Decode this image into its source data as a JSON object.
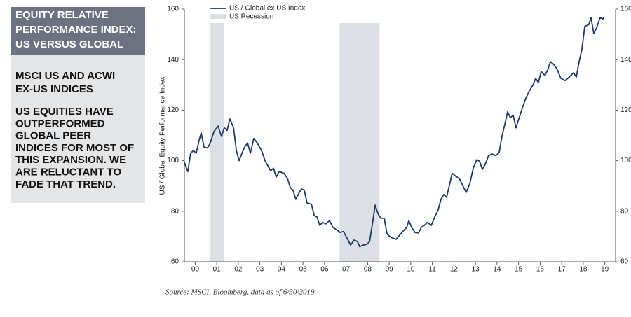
{
  "panel": {
    "heading": [
      "EQUITY RELATIVE",
      "PERFORMANCE INDEX:",
      "US VERSUS GLOBAL"
    ],
    "subheading": [
      "MSCI US AND ACWI",
      "EX-US INDICES"
    ],
    "body": [
      "US EQUITIES HAVE",
      "OUTPERFORMED",
      "GLOBAL PEER",
      "INDICES FOR MOST OF",
      "THIS EXPANSION. WE",
      "ARE RELUCTANT TO",
      "FADE THAT TREND."
    ]
  },
  "chart_data": {
    "type": "line",
    "ylabel": "US / Global Equity Performance Index",
    "source": "Source: MSCI, Bloomberg, data as of 6/30/2019.",
    "xlim": [
      2000,
      2020
    ],
    "xticks": [
      {
        "value": 2000.5,
        "label": "00"
      },
      {
        "value": 2001.5,
        "label": "01"
      },
      {
        "value": 2002.5,
        "label": "02"
      },
      {
        "value": 2003.5,
        "label": "03"
      },
      {
        "value": 2004.5,
        "label": "04"
      },
      {
        "value": 2005.5,
        "label": "05"
      },
      {
        "value": 2006.5,
        "label": "06"
      },
      {
        "value": 2007.5,
        "label": "07"
      },
      {
        "value": 2008.5,
        "label": "08"
      },
      {
        "value": 2009.5,
        "label": "09"
      },
      {
        "value": 2010.5,
        "label": "10"
      },
      {
        "value": 2011.5,
        "label": "11"
      },
      {
        "value": 2012.5,
        "label": "12"
      },
      {
        "value": 2013.5,
        "label": "13"
      },
      {
        "value": 2014.5,
        "label": "14"
      },
      {
        "value": 2015.5,
        "label": "15"
      },
      {
        "value": 2016.5,
        "label": "16"
      },
      {
        "value": 2017.5,
        "label": "17"
      },
      {
        "value": 2018.5,
        "label": "18"
      },
      {
        "value": 2019.5,
        "label": "19"
      }
    ],
    "ylim": [
      60,
      160
    ],
    "yticks": [
      60,
      80,
      100,
      120,
      140,
      160
    ],
    "y2lim": [
      60,
      160
    ],
    "y2ticks": [
      60,
      80,
      100,
      120,
      140,
      160
    ],
    "shading": {
      "name": "US Recession",
      "color": "#dcdfe3",
      "ranges": [
        [
          2001.17,
          2001.82
        ],
        [
          2007.2,
          2009.05
        ]
      ]
    },
    "x": [
      2000.0,
      2000.16,
      2000.29,
      2000.42,
      2000.55,
      2000.68,
      2000.78,
      2000.91,
      2001.07,
      2001.2,
      2001.37,
      2001.56,
      2001.72,
      2001.85,
      2001.98,
      2002.11,
      2002.28,
      2002.41,
      2002.54,
      2002.67,
      2002.8,
      2002.93,
      2003.06,
      2003.22,
      2003.38,
      2003.58,
      2003.74,
      2003.87,
      2004.0,
      2004.13,
      2004.26,
      2004.39,
      2004.62,
      2004.78,
      2004.91,
      2005.04,
      2005.17,
      2005.3,
      2005.43,
      2005.56,
      2005.69,
      2005.89,
      2006.02,
      2006.15,
      2006.28,
      2006.41,
      2006.57,
      2006.73,
      2006.89,
      2007.06,
      2007.22,
      2007.38,
      2007.54,
      2007.71,
      2007.87,
      2008.03,
      2008.13,
      2008.29,
      2008.46,
      2008.59,
      2008.72,
      2008.85,
      2008.98,
      2009.11,
      2009.27,
      2009.4,
      2009.53,
      2009.66,
      2009.82,
      2009.98,
      2010.15,
      2010.31,
      2010.41,
      2010.54,
      2010.7,
      2010.86,
      2010.99,
      2011.12,
      2011.28,
      2011.45,
      2011.61,
      2011.77,
      2011.9,
      2012.03,
      2012.16,
      2012.29,
      2012.42,
      2012.59,
      2012.75,
      2012.91,
      2013.07,
      2013.24,
      2013.4,
      2013.56,
      2013.69,
      2013.82,
      2013.95,
      2014.11,
      2014.28,
      2014.44,
      2014.6,
      2014.73,
      2014.86,
      2014.99,
      2015.12,
      2015.25,
      2015.38,
      2015.51,
      2015.67,
      2015.84,
      2016.0,
      2016.16,
      2016.29,
      2016.42,
      2016.55,
      2016.72,
      2016.85,
      2016.98,
      2017.14,
      2017.3,
      2017.46,
      2017.66,
      2017.85,
      2018.05,
      2018.18,
      2018.31,
      2018.44,
      2018.57,
      2018.76,
      2018.86,
      2018.99,
      2019.12,
      2019.28,
      2019.41,
      2019.48
    ],
    "series": [
      {
        "name": "US / Global ex US Index",
        "color": "#1f3a6b",
        "values": [
          99.3,
          95.7,
          103,
          104,
          103,
          108,
          111,
          105.4,
          105,
          107,
          111.5,
          113.7,
          109.6,
          113,
          112,
          116.5,
          113,
          104,
          100,
          103,
          105.5,
          107,
          103,
          108.8,
          107,
          104,
          100,
          98,
          96,
          97,
          93.5,
          95.7,
          95,
          93,
          89.4,
          88.3,
          84.7,
          87,
          88.8,
          88.3,
          83.3,
          82.8,
          78.3,
          77.7,
          74.4,
          75.6,
          75,
          76.3,
          73.6,
          72.7,
          71.6,
          72,
          69.4,
          66.6,
          68.6,
          68,
          66,
          66.6,
          66.9,
          68,
          75,
          82.4,
          79,
          77.2,
          77.2,
          71,
          70,
          69.4,
          68.9,
          70.5,
          72.2,
          73.6,
          76.3,
          73.6,
          71.6,
          71.4,
          73.6,
          74.4,
          75.6,
          74.4,
          77.7,
          80.5,
          84.7,
          86.6,
          85.5,
          90.2,
          95,
          93.8,
          93,
          90.2,
          87.4,
          91,
          97.1,
          100.4,
          99.8,
          96.6,
          98.5,
          102,
          102.6,
          102,
          103.2,
          109.6,
          114.3,
          119.3,
          117,
          118,
          113,
          116.5,
          120.7,
          124.8,
          127.6,
          129.8,
          132.6,
          130.9,
          135.3,
          133.7,
          135.9,
          139.2,
          138,
          136,
          132.6,
          131.7,
          133.1,
          134.8,
          133.1,
          139.2,
          144.2,
          153.1,
          153.9,
          156.6,
          150.3,
          152.5,
          156.6,
          156.1,
          156.9
        ]
      }
    ]
  }
}
